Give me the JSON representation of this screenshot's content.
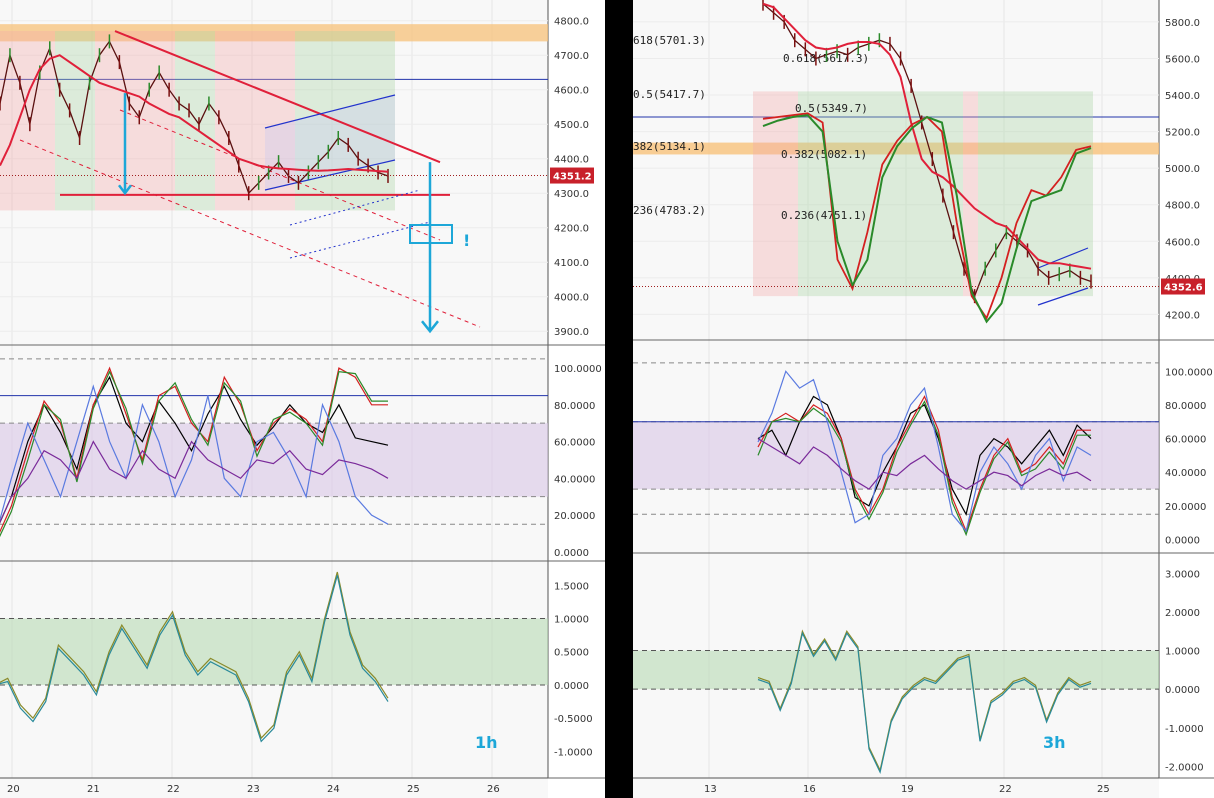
{
  "chart_data": [
    {
      "type": "line",
      "timeframe_label": "1h",
      "x_ticks": [
        "20",
        "21",
        "22",
        "23",
        "24",
        "25",
        "26"
      ],
      "price_panel": {
        "y_ticks": [
          "4800.0",
          "4700.0",
          "4600.0",
          "4500.0",
          "4400.0",
          "4300.0",
          "4200.0",
          "4100.0",
          "4000.0",
          "3900.0"
        ],
        "ylim": [
          3860,
          4860
        ],
        "current_price_label": "4351.2",
        "current_price": 4351.2,
        "annotation": "!",
        "close": [
          4560,
          4700,
          4620,
          4500,
          4650,
          4720,
          4600,
          4540,
          4460,
          4620,
          4700,
          4740,
          4680,
          4560,
          4520,
          4600,
          4650,
          4600,
          4560,
          4540,
          4500,
          4560,
          4520,
          4460,
          4380,
          4300,
          4330,
          4360,
          4390,
          4350,
          4330,
          4360,
          4390,
          4420,
          4460,
          4440,
          4400,
          4380,
          4360,
          4350
        ],
        "baseline_fast": [
          4380,
          4440,
          4520,
          4600,
          4660,
          4690,
          4700,
          4680,
          4660,
          4640,
          4620,
          4610,
          4600,
          4590,
          4580,
          4560,
          4545,
          4530,
          4520,
          4500,
          4480,
          4460,
          4440,
          4420,
          4400,
          4390,
          4380,
          4375,
          4372,
          4370,
          4368,
          4366,
          4365,
          4366,
          4368,
          4370,
          4368,
          4366,
          4364,
          4362
        ],
        "resistance_line_x": [
          0,
          11
        ],
        "resistance_line_y": [
          4770,
          4390
        ],
        "support_line_y": 4295,
        "horizontal_blue_y": 4630,
        "target_arrow_y": [
          4390,
          3900
        ]
      },
      "stoch_panel": {
        "y_ticks": [
          "100.0000",
          "80.0000",
          "60.0000",
          "40.0000",
          "20.0000",
          "0.0000"
        ],
        "ylim": [
          -5,
          112
        ],
        "band": [
          30,
          70
        ],
        "level_line": 85,
        "series": [
          {
            "color": "#000000",
            "values": [
              10,
              30,
              60,
              80,
              65,
              45,
              80,
              95,
              70,
              60,
              82,
              70,
              55,
              75,
              90,
              72,
              58,
              68,
              80,
              70,
              65,
              80,
              62,
              60,
              58
            ]
          },
          {
            "color": "#d42020",
            "values": [
              5,
              25,
              55,
              82,
              70,
              40,
              80,
              100,
              75,
              50,
              85,
              90,
              70,
              60,
              95,
              80,
              55,
              70,
              78,
              72,
              60,
              100,
              95,
              80,
              80
            ]
          },
          {
            "color": "#2a8a2a",
            "values": [
              3,
              22,
              50,
              80,
              72,
              38,
              78,
              98,
              78,
              48,
              82,
              92,
              72,
              58,
              92,
              82,
              52,
              72,
              76,
              70,
              58,
              98,
              97,
              82,
              82
            ]
          },
          {
            "color": "#5a7ae0",
            "values": [
              8,
              40,
              70,
              50,
              30,
              60,
              90,
              60,
              40,
              80,
              60,
              30,
              50,
              85,
              40,
              30,
              60,
              65,
              50,
              30,
              80,
              60,
              30,
              20,
              15
            ]
          },
          {
            "color": "#7a2a9a",
            "values": [
              10,
              30,
              40,
              55,
              50,
              40,
              60,
              45,
              40,
              55,
              45,
              40,
              60,
              50,
              45,
              40,
              50,
              48,
              55,
              45,
              42,
              50,
              48,
              45,
              40
            ]
          }
        ]
      },
      "osc_panel": {
        "y_ticks": [
          "1.5000",
          "1.0000",
          "0.5000",
          "0.0000",
          "-0.5000",
          "-1.0000"
        ],
        "ylim": [
          -1.4,
          1.85
        ],
        "band": [
          0,
          1
        ],
        "series": [
          {
            "color": "#8a8a2a",
            "values": [
              0,
              0.1,
              -0.3,
              -0.5,
              -0.2,
              0.6,
              0.4,
              0.2,
              -0.1,
              0.5,
              0.9,
              0.6,
              0.3,
              0.8,
              1.1,
              0.5,
              0.2,
              0.4,
              0.3,
              0.2,
              -0.2,
              -0.8,
              -0.6,
              0.2,
              0.5,
              0.1,
              1.0,
              1.7,
              0.8,
              0.3,
              0.1,
              -0.2
            ]
          },
          {
            "color": "#2a8a9a",
            "values": [
              0,
              0.05,
              -0.35,
              -0.55,
              -0.25,
              0.55,
              0.35,
              0.15,
              -0.15,
              0.45,
              0.85,
              0.55,
              0.25,
              0.75,
              1.05,
              0.45,
              0.15,
              0.35,
              0.25,
              0.15,
              -0.25,
              -0.85,
              -0.65,
              0.15,
              0.45,
              0.05,
              0.95,
              1.65,
              0.75,
              0.25,
              0.05,
              -0.25
            ]
          }
        ]
      }
    },
    {
      "type": "line",
      "timeframe_label": "3h",
      "x_ticks": [
        "13",
        "16",
        "19",
        "22",
        "25"
      ],
      "price_panel": {
        "y_ticks": [
          "5800.0",
          "5600.0",
          "5400.0",
          "5200.0",
          "5000.0",
          "4800.0",
          "4600.0",
          "4400.0",
          "4200.0"
        ],
        "ylim": [
          4060,
          5920
        ],
        "current_price_label": "4352.6",
        "current_price": 4352.6,
        "fib_levels": [
          {
            "label": "618(5701.3)"
          },
          {
            "label": "0.618(5617.3)"
          },
          {
            "label": "0.5(5417.7)"
          },
          {
            "label": "0.5(5349.7)"
          },
          {
            "label": "382(5134.1)"
          },
          {
            "label": "0.382(5082.1)"
          },
          {
            "label": "236(4783.2)"
          },
          {
            "label": "0.236(4751.1)"
          }
        ],
        "close": [
          5900,
          5850,
          5800,
          5700,
          5650,
          5600,
          5620,
          5640,
          5620,
          5660,
          5680,
          5700,
          5680,
          5600,
          5450,
          5250,
          5050,
          4850,
          4650,
          4450,
          4300,
          4450,
          4550,
          4650,
          4600,
          4550,
          4450,
          4400,
          4420,
          4440,
          4400,
          4380
        ],
        "baseline_red": [
          5900,
          5880,
          5820,
          5760,
          5700,
          5660,
          5650,
          5660,
          5680,
          5690,
          5690,
          5680,
          5620,
          5500,
          5250,
          5050,
          4980,
          4950,
          4900,
          4840,
          4780,
          4740,
          4700,
          4680,
          4620,
          4560,
          4500,
          4480,
          4480,
          4470,
          4460,
          4450
        ],
        "horizontal_blue_y": 5280,
        "smooth_red": [
          5270,
          5280,
          5290,
          5300,
          5250,
          4500,
          4340,
          4650,
          5020,
          5150,
          5240,
          5280,
          5200,
          4700,
          4300,
          4180,
          4400,
          4700,
          4880,
          4850,
          4950,
          5100,
          5120
        ],
        "smooth_green": [
          5230,
          5260,
          5280,
          5290,
          5200,
          4600,
          4360,
          4500,
          4950,
          5120,
          5220,
          5280,
          5250,
          4850,
          4320,
          4160,
          4260,
          4560,
          4820,
          4850,
          4880,
          5080,
          5110
        ]
      },
      "stoch_panel": {
        "y_ticks": [
          "100.0000",
          "80.0000",
          "60.0000",
          "40.0000",
          "20.0000",
          "0.0000"
        ],
        "ylim": [
          -8,
          118
        ],
        "band": [
          30,
          70
        ],
        "level_line": 70,
        "series": [
          {
            "color": "#000000",
            "values": [
              60,
              65,
              50,
              70,
              85,
              80,
              60,
              25,
              20,
              40,
              55,
              75,
              80,
              60,
              30,
              15,
              50,
              60,
              55,
              45,
              55,
              65,
              50,
              68,
              60
            ]
          },
          {
            "color": "#d42020",
            "values": [
              55,
              70,
              75,
              70,
              80,
              75,
              60,
              30,
              15,
              30,
              55,
              70,
              85,
              65,
              25,
              5,
              30,
              50,
              60,
              40,
              45,
              55,
              45,
              65,
              65
            ]
          },
          {
            "color": "#2a8a2a",
            "values": [
              50,
              70,
              72,
              70,
              78,
              72,
              58,
              28,
              12,
              28,
              52,
              68,
              82,
              62,
              22,
              3,
              28,
              48,
              58,
              38,
              42,
              52,
              42,
              62,
              62
            ]
          },
          {
            "color": "#5a7ae0",
            "values": [
              58,
              75,
              100,
              90,
              95,
              70,
              40,
              10,
              15,
              50,
              60,
              80,
              90,
              55,
              15,
              5,
              40,
              55,
              45,
              30,
              50,
              60,
              35,
              55,
              50
            ]
          },
          {
            "color": "#7a2a9a",
            "values": [
              60,
              55,
              50,
              45,
              55,
              50,
              42,
              35,
              30,
              40,
              38,
              45,
              50,
              42,
              35,
              30,
              35,
              40,
              38,
              32,
              38,
              42,
              38,
              40,
              35
            ]
          }
        ]
      },
      "osc_panel": {
        "y_ticks": [
          "3.0000",
          "2.0000",
          "1.0000",
          "0.0000",
          "-1.0000",
          "-2.0000"
        ],
        "ylim": [
          -2.3,
          3.5
        ],
        "band": [
          0,
          1
        ],
        "series": [
          {
            "color": "#8a8a2a",
            "values": [
              0.3,
              0.2,
              -0.5,
              0.2,
              1.5,
              0.9,
              1.3,
              0.8,
              1.5,
              1.1,
              -1.5,
              -2.1,
              -0.8,
              -0.2,
              0.1,
              0.3,
              0.2,
              0.5,
              0.8,
              0.9,
              -1.3,
              -0.3,
              -0.1,
              0.2,
              0.3,
              0.1,
              -0.8,
              -0.1,
              0.3,
              0.1,
              0.2
            ]
          },
          {
            "color": "#2a8a9a",
            "values": [
              0.25,
              0.15,
              -0.55,
              0.15,
              1.45,
              0.85,
              1.25,
              0.75,
              1.45,
              1.05,
              -1.55,
              -2.15,
              -0.85,
              -0.25,
              0.05,
              0.25,
              0.15,
              0.45,
              0.75,
              0.85,
              -1.35,
              -0.35,
              -0.15,
              0.15,
              0.25,
              0.05,
              -0.85,
              -0.15,
              0.25,
              0.05,
              0.15
            ]
          }
        ]
      }
    }
  ]
}
